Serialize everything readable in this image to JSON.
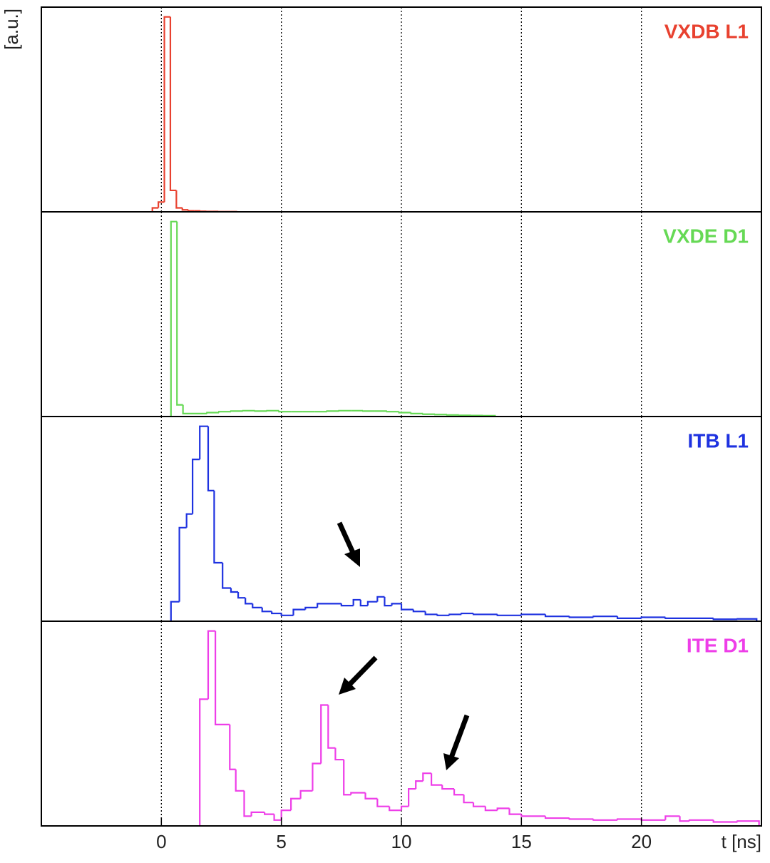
{
  "chart_data": {
    "type": "histogram",
    "xlabel": "t [ns]",
    "ylabel": "[a.u.]",
    "xlim": [
      -5,
      25
    ],
    "xticks": [
      0,
      5,
      10,
      15,
      20
    ],
    "ylim": [
      0,
      1.05
    ],
    "grid": "dotted",
    "series": [
      {
        "name": "VXDB L1",
        "color": "#e8412f",
        "bins": [
          -0.375,
          -0.125,
          0.125,
          0.375,
          0.625,
          0.875,
          1.125,
          1.375,
          1.625,
          1.875,
          2.125,
          2.375,
          2.625,
          2.875,
          3.125
        ],
        "values": [
          0.02,
          0.05,
          1.0,
          0.11,
          0.02,
          0.01,
          0.005,
          0.005,
          0.003,
          0.002,
          0.002,
          0.001,
          0.001,
          0.001
        ]
      },
      {
        "name": "VXDE D1",
        "color": "#66d955",
        "bins": [
          0.4,
          0.65,
          0.9,
          1.4,
          1.9,
          2.4,
          2.9,
          3.4,
          3.9,
          4.4,
          4.9,
          5.4,
          5.9,
          6.4,
          6.9,
          7.4,
          7.9,
          8.4,
          8.9,
          9.4,
          9.9,
          10.4,
          10.9,
          11.4,
          11.9,
          12.4,
          12.9,
          13.4,
          13.9
        ],
        "values": [
          1.0,
          0.06,
          0.015,
          0.015,
          0.02,
          0.025,
          0.028,
          0.03,
          0.028,
          0.03,
          0.025,
          0.025,
          0.025,
          0.025,
          0.028,
          0.03,
          0.03,
          0.028,
          0.028,
          0.025,
          0.02,
          0.015,
          0.012,
          0.01,
          0.008,
          0.006,
          0.005,
          0.004
        ]
      },
      {
        "name": "ITB L1",
        "color": "#1e32e0",
        "bins": [
          0.4,
          0.75,
          1.05,
          1.3,
          1.6,
          1.95,
          2.2,
          2.55,
          2.9,
          3.2,
          3.5,
          3.8,
          4.2,
          4.6,
          5.0,
          5.5,
          6.0,
          6.5,
          7.0,
          7.5,
          8.0,
          8.3,
          8.6,
          9.0,
          9.3,
          9.6,
          10.0,
          10.5,
          11.0,
          11.5,
          12.0,
          12.5,
          13.0,
          14.0,
          15.0,
          16.0,
          17.0,
          18.0,
          19.0,
          20.0,
          21.0,
          22.0,
          23.0,
          24.0,
          24.8
        ],
        "values": [
          0.1,
          0.48,
          0.55,
          0.83,
          1.0,
          0.67,
          0.3,
          0.17,
          0.15,
          0.12,
          0.09,
          0.07,
          0.05,
          0.04,
          0.03,
          0.06,
          0.07,
          0.09,
          0.09,
          0.08,
          0.11,
          0.08,
          0.1,
          0.125,
          0.08,
          0.09,
          0.06,
          0.05,
          0.035,
          0.03,
          0.035,
          0.04,
          0.035,
          0.03,
          0.035,
          0.025,
          0.02,
          0.025,
          0.015,
          0.02,
          0.015,
          0.015,
          0.01,
          0.012
        ]
      },
      {
        "name": "ITE D1",
        "color": "#ee3ee8",
        "bins": [
          1.6,
          1.95,
          2.25,
          2.85,
          3.1,
          3.45,
          3.75,
          4.3,
          4.7,
          5.0,
          5.4,
          5.8,
          6.3,
          6.65,
          6.95,
          7.25,
          7.6,
          7.9,
          8.5,
          9.0,
          9.5,
          10.0,
          10.3,
          10.6,
          10.9,
          11.25,
          11.7,
          12.2,
          12.6,
          13.0,
          13.5,
          14.0,
          14.5,
          15.0,
          16.0,
          17.0,
          18.0,
          19.0,
          20.0,
          21.0,
          21.6,
          22.0,
          23.0,
          24.0,
          24.9
        ],
        "values": [
          0.65,
          1.0,
          0.52,
          0.29,
          0.18,
          0.05,
          0.07,
          0.06,
          0.03,
          0.08,
          0.14,
          0.18,
          0.32,
          0.62,
          0.4,
          0.34,
          0.16,
          0.17,
          0.14,
          0.1,
          0.08,
          0.1,
          0.19,
          0.23,
          0.27,
          0.21,
          0.19,
          0.16,
          0.12,
          0.1,
          0.08,
          0.09,
          0.06,
          0.05,
          0.04,
          0.035,
          0.03,
          0.035,
          0.03,
          0.05,
          0.025,
          0.03,
          0.02,
          0.025
        ]
      }
    ]
  }
}
